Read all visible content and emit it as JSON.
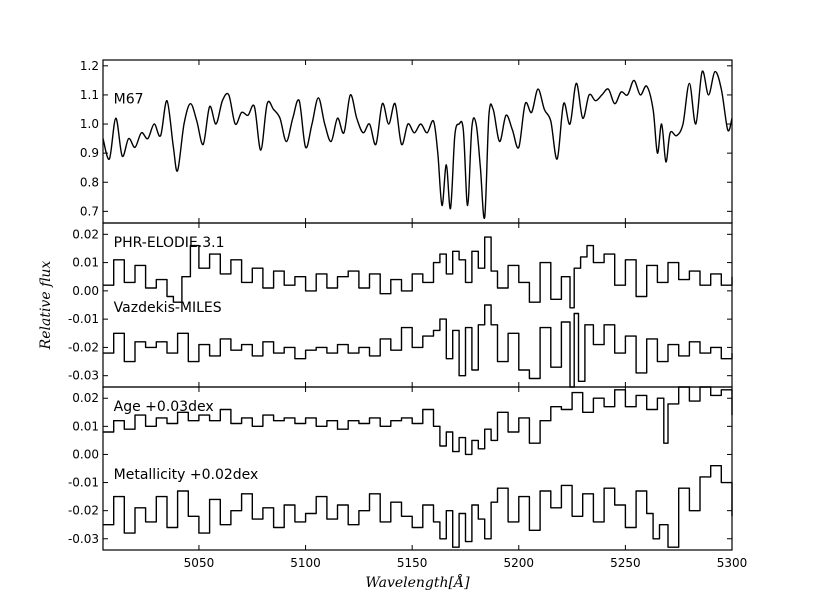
{
  "chart_data": {
    "type": "line",
    "xlabel": "Wavelength[Å]",
    "ylabel": "Relative flux",
    "xlim": [
      5005,
      5300
    ],
    "xticks": [
      5050,
      5100,
      5150,
      5200,
      5250,
      5300
    ],
    "panels": [
      {
        "name": "top",
        "ylim": [
          0.66,
          1.22
        ],
        "yticks": [
          "1.2",
          "1.1",
          "1.0",
          "0.9",
          "0.8",
          "0.7"
        ],
        "ytick_values": [
          1.2,
          1.1,
          1.0,
          0.9,
          0.8,
          0.7
        ],
        "annotations": [
          {
            "text": "M67",
            "x": 5010,
            "y": 1.07
          }
        ],
        "series": [
          {
            "label": "M67",
            "style": "smooth",
            "x": [
              5005,
              5008,
              5011,
              5014,
              5017,
              5020,
              5023,
              5026,
              5029,
              5032,
              5035,
              5038,
              5040,
              5043,
              5046,
              5049,
              5052,
              5055,
              5058,
              5061,
              5064,
              5067,
              5070,
              5073,
              5076,
              5079,
              5082,
              5085,
              5088,
              5091,
              5094,
              5097,
              5100,
              5103,
              5106,
              5109,
              5112,
              5115,
              5118,
              5121,
              5124,
              5127,
              5130,
              5133,
              5136,
              5139,
              5142,
              5145,
              5148,
              5151,
              5154,
              5157,
              5160,
              5162,
              5164,
              5166,
              5168,
              5170,
              5172,
              5174,
              5176,
              5178,
              5180,
              5182,
              5184,
              5186,
              5188,
              5191,
              5194,
              5197,
              5200,
              5203,
              5206,
              5209,
              5212,
              5215,
              5218,
              5221,
              5224,
              5227,
              5230,
              5233,
              5236,
              5239,
              5242,
              5245,
              5248,
              5251,
              5254,
              5257,
              5260,
              5263,
              5265,
              5267,
              5269,
              5271,
              5274,
              5277,
              5280,
              5283,
              5286,
              5289,
              5292,
              5295,
              5298,
              5300
            ],
            "y": [
              0.95,
              0.88,
              1.02,
              0.89,
              0.95,
              0.92,
              0.97,
              0.95,
              1.0,
              0.96,
              1.08,
              0.92,
              0.84,
              1.0,
              1.07,
              1.01,
              0.93,
              1.06,
              1.0,
              1.08,
              1.1,
              1.0,
              1.04,
              1.03,
              1.06,
              0.91,
              1.07,
              1.05,
              1.02,
              0.94,
              1.02,
              1.08,
              0.92,
              1.0,
              1.09,
              1.0,
              0.94,
              1.02,
              0.97,
              1.1,
              1.02,
              0.97,
              1.0,
              0.93,
              1.07,
              1.0,
              1.07,
              0.93,
              1.0,
              0.97,
              1.0,
              0.97,
              1.01,
              0.9,
              0.72,
              0.86,
              0.71,
              0.96,
              1.0,
              0.98,
              0.72,
              0.99,
              1.0,
              0.85,
              0.68,
              1.03,
              1.05,
              0.94,
              1.03,
              0.98,
              0.92,
              1.07,
              1.04,
              1.12,
              1.05,
              1.01,
              0.88,
              1.07,
              1.0,
              1.14,
              1.02,
              1.1,
              1.08,
              1.1,
              1.12,
              1.07,
              1.11,
              1.1,
              1.15,
              1.1,
              1.13,
              1.05,
              0.9,
              1.0,
              0.87,
              0.97,
              0.96,
              1.0,
              1.14,
              1.0,
              1.18,
              1.1,
              1.18,
              1.12,
              0.98,
              1.02
            ]
          }
        ]
      },
      {
        "name": "middle",
        "ylim": [
          -0.034,
          0.024
        ],
        "yticks": [
          "0.02",
          "0.01",
          "0.00",
          "-0.01",
          "-0.02",
          "-0.03"
        ],
        "ytick_values": [
          0.02,
          0.01,
          0.0,
          -0.01,
          -0.02,
          -0.03
        ],
        "annotations": [
          {
            "text": "PHR-ELODIE.3.1",
            "x": 5010,
            "y": 0.0155
          },
          {
            "text": "Vazdekis-MILES",
            "x": 5010,
            "y": -0.0075
          }
        ],
        "series": [
          {
            "label": "PHR-ELODIE.3.1",
            "style": "step",
            "x": [
              5005,
              5010,
              5015,
              5020,
              5025,
              5030,
              5035,
              5038,
              5042,
              5046,
              5050,
              5055,
              5060,
              5065,
              5070,
              5075,
              5080,
              5085,
              5090,
              5095,
              5100,
              5105,
              5110,
              5115,
              5120,
              5125,
              5130,
              5135,
              5140,
              5145,
              5150,
              5155,
              5160,
              5163,
              5166,
              5169,
              5172,
              5175,
              5178,
              5181,
              5184,
              5187,
              5190,
              5195,
              5200,
              5205,
              5210,
              5215,
              5220,
              5224,
              5226,
              5229,
              5232,
              5235,
              5240,
              5245,
              5250,
              5255,
              5260,
              5265,
              5270,
              5275,
              5280,
              5285,
              5290,
              5295,
              5300
            ],
            "y": [
              0.002,
              0.011,
              0.003,
              0.009,
              0.001,
              0.004,
              -0.002,
              -0.004,
              0.005,
              0.016,
              0.008,
              0.013,
              0.006,
              0.011,
              0.003,
              0.008,
              0.001,
              0.007,
              0.002,
              0.005,
              0.0,
              0.006,
              0.001,
              0.005,
              0.007,
              0.001,
              0.006,
              -0.001,
              0.004,
              0.0,
              0.006,
              0.003,
              0.01,
              0.013,
              0.006,
              0.014,
              0.011,
              0.003,
              0.014,
              0.008,
              0.019,
              0.007,
              0.001,
              0.009,
              0.003,
              -0.004,
              0.01,
              -0.003,
              0.005,
              -0.006,
              0.008,
              0.012,
              0.016,
              0.01,
              0.013,
              0.002,
              0.011,
              -0.002,
              0.009,
              0.003,
              0.01,
              0.004,
              0.007,
              0.002,
              0.006,
              0.002,
              0.005
            ]
          },
          {
            "label": "Vazdekis-MILES",
            "style": "step",
            "x": [
              5005,
              5010,
              5015,
              5020,
              5025,
              5030,
              5035,
              5040,
              5045,
              5050,
              5055,
              5060,
              5065,
              5070,
              5075,
              5080,
              5085,
              5090,
              5095,
              5100,
              5105,
              5110,
              5115,
              5120,
              5125,
              5130,
              5135,
              5140,
              5145,
              5150,
              5155,
              5160,
              5163,
              5166,
              5169,
              5172,
              5175,
              5178,
              5181,
              5184,
              5187,
              5190,
              5195,
              5200,
              5205,
              5210,
              5215,
              5220,
              5224,
              5226,
              5228,
              5231,
              5235,
              5240,
              5245,
              5250,
              5255,
              5260,
              5265,
              5270,
              5275,
              5280,
              5285,
              5290,
              5295,
              5300
            ],
            "y": [
              -0.022,
              -0.015,
              -0.025,
              -0.018,
              -0.02,
              -0.018,
              -0.022,
              -0.015,
              -0.025,
              -0.019,
              -0.023,
              -0.017,
              -0.021,
              -0.019,
              -0.023,
              -0.018,
              -0.022,
              -0.02,
              -0.024,
              -0.021,
              -0.02,
              -0.022,
              -0.019,
              -0.022,
              -0.02,
              -0.023,
              -0.017,
              -0.021,
              -0.013,
              -0.02,
              -0.016,
              -0.014,
              -0.01,
              -0.024,
              -0.014,
              -0.03,
              -0.013,
              -0.028,
              -0.012,
              -0.005,
              -0.012,
              -0.025,
              -0.015,
              -0.028,
              -0.031,
              -0.013,
              -0.027,
              -0.011,
              -0.034,
              -0.008,
              -0.032,
              -0.012,
              -0.019,
              -0.012,
              -0.022,
              -0.016,
              -0.029,
              -0.017,
              -0.025,
              -0.019,
              -0.023,
              -0.018,
              -0.022,
              -0.02,
              -0.024,
              -0.022
            ]
          }
        ]
      },
      {
        "name": "bottom",
        "ylim": [
          -0.034,
          0.024
        ],
        "yticks": [
          "0.02",
          "0.01",
          "0.00",
          "-0.01",
          "-0.02",
          "-0.03"
        ],
        "ytick_values": [
          0.02,
          0.01,
          0.0,
          -0.01,
          -0.02,
          -0.03
        ],
        "annotations": [
          {
            "text": "Age +0.03dex",
            "x": 5010,
            "y": 0.0155
          },
          {
            "text": "Metallicity +0.02dex",
            "x": 5010,
            "y": -0.0088
          }
        ],
        "series": [
          {
            "label": "Age +0.03dex",
            "style": "step",
            "x": [
              5005,
              5010,
              5015,
              5020,
              5025,
              5030,
              5035,
              5040,
              5045,
              5050,
              5055,
              5060,
              5065,
              5070,
              5075,
              5080,
              5085,
              5090,
              5095,
              5100,
              5105,
              5110,
              5115,
              5120,
              5125,
              5130,
              5135,
              5140,
              5145,
              5150,
              5155,
              5160,
              5163,
              5166,
              5169,
              5172,
              5175,
              5178,
              5181,
              5184,
              5187,
              5190,
              5195,
              5200,
              5205,
              5210,
              5215,
              5220,
              5225,
              5230,
              5235,
              5240,
              5245,
              5250,
              5255,
              5260,
              5265,
              5268,
              5270,
              5275,
              5280,
              5285,
              5290,
              5295,
              5300
            ],
            "y": [
              0.008,
              0.012,
              0.009,
              0.014,
              0.01,
              0.013,
              0.011,
              0.015,
              0.012,
              0.014,
              0.012,
              0.016,
              0.011,
              0.013,
              0.01,
              0.014,
              0.012,
              0.013,
              0.011,
              0.013,
              0.01,
              0.012,
              0.009,
              0.012,
              0.011,
              0.013,
              0.01,
              0.012,
              0.013,
              0.011,
              0.016,
              0.01,
              0.003,
              0.008,
              0.001,
              0.006,
              0.0,
              0.005,
              0.002,
              0.009,
              0.005,
              0.015,
              0.008,
              0.013,
              0.004,
              0.012,
              0.017,
              0.016,
              0.022,
              0.015,
              0.02,
              0.017,
              0.023,
              0.017,
              0.021,
              0.016,
              0.02,
              0.004,
              0.018,
              0.024,
              0.019,
              0.024,
              0.021,
              0.023,
              0.014
            ]
          },
          {
            "label": "Metallicity +0.02dex",
            "style": "step",
            "x": [
              5005,
              5010,
              5015,
              5020,
              5025,
              5030,
              5035,
              5040,
              5045,
              5050,
              5055,
              5060,
              5065,
              5070,
              5075,
              5080,
              5085,
              5090,
              5095,
              5100,
              5105,
              5110,
              5115,
              5120,
              5125,
              5130,
              5135,
              5140,
              5145,
              5150,
              5155,
              5160,
              5163,
              5166,
              5169,
              5172,
              5175,
              5178,
              5181,
              5184,
              5187,
              5190,
              5195,
              5200,
              5205,
              5210,
              5215,
              5220,
              5225,
              5230,
              5235,
              5240,
              5245,
              5250,
              5255,
              5260,
              5263,
              5266,
              5270,
              5275,
              5280,
              5285,
              5290,
              5295,
              5300
            ],
            "y": [
              -0.025,
              -0.015,
              -0.028,
              -0.019,
              -0.024,
              -0.015,
              -0.026,
              -0.013,
              -0.022,
              -0.028,
              -0.016,
              -0.025,
              -0.02,
              -0.014,
              -0.023,
              -0.019,
              -0.026,
              -0.018,
              -0.024,
              -0.021,
              -0.015,
              -0.023,
              -0.018,
              -0.025,
              -0.02,
              -0.014,
              -0.024,
              -0.017,
              -0.022,
              -0.026,
              -0.018,
              -0.024,
              -0.03,
              -0.02,
              -0.033,
              -0.021,
              -0.031,
              -0.018,
              -0.023,
              -0.03,
              -0.017,
              -0.012,
              -0.024,
              -0.015,
              -0.027,
              -0.013,
              -0.019,
              -0.011,
              -0.022,
              -0.014,
              -0.024,
              -0.012,
              -0.018,
              -0.026,
              -0.013,
              -0.021,
              -0.03,
              -0.025,
              -0.033,
              -0.012,
              -0.02,
              -0.008,
              -0.004,
              -0.01,
              -0.022
            ]
          }
        ]
      }
    ]
  }
}
